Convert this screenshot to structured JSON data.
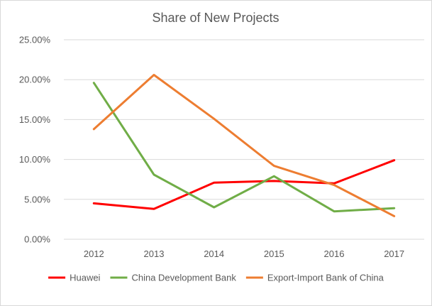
{
  "chart_data": {
    "type": "line",
    "title": "Share of New Projects",
    "x": [
      "2012",
      "2013",
      "2014",
      "2015",
      "2016",
      "2017"
    ],
    "ylim": [
      0,
      0.25
    ],
    "yticks": [
      "0.00%",
      "5.00%",
      "10.00%",
      "15.00%",
      "20.00%",
      "25.00%"
    ],
    "grid": true,
    "legend_position": "bottom",
    "series": [
      {
        "name": "Huawei",
        "color": "#ff0000",
        "values": [
          0.045,
          0.038,
          0.071,
          0.073,
          0.07,
          0.099
        ]
      },
      {
        "name": "China Development Bank",
        "color": "#70ad47",
        "values": [
          0.196,
          0.081,
          0.04,
          0.079,
          0.035,
          0.039
        ]
      },
      {
        "name": "Export-Import Bank of China",
        "color": "#ed7d31",
        "values": [
          0.138,
          0.206,
          0.151,
          0.092,
          0.068,
          0.029
        ]
      }
    ]
  }
}
